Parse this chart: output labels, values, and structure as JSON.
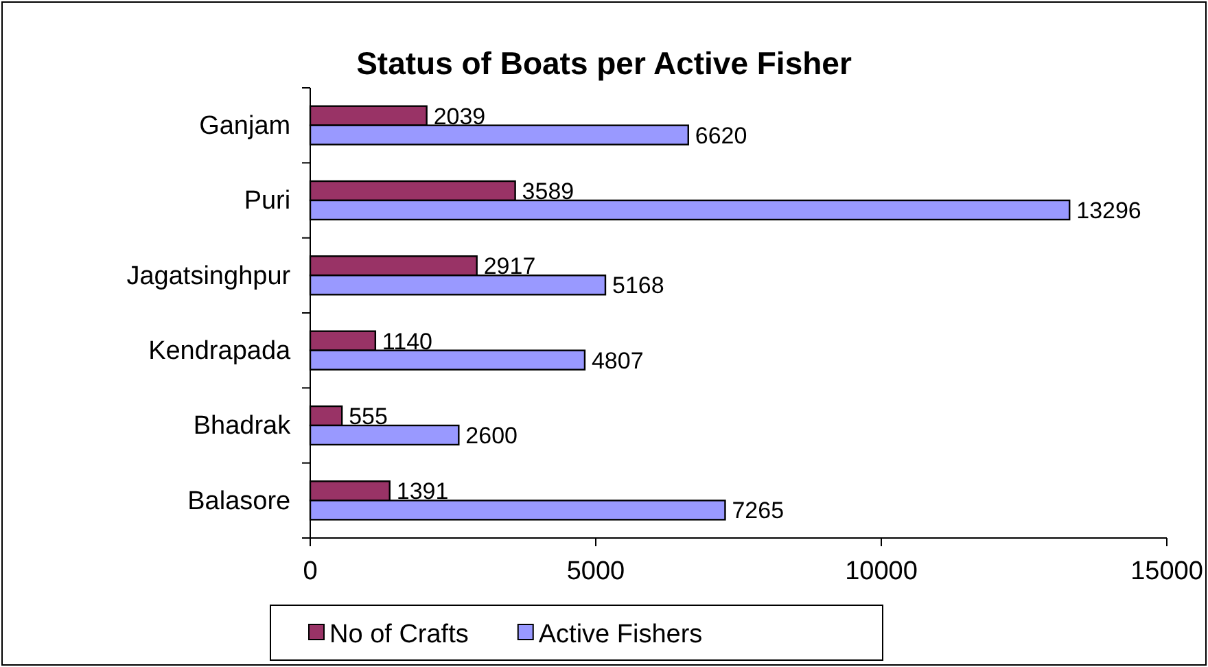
{
  "chart_data": {
    "type": "bar",
    "orientation": "horizontal",
    "title": "Status of Boats per Active Fisher",
    "categories": [
      "Ganjam",
      "Puri",
      "Jagatsinghpur",
      "Kendrapada",
      "Bhadrak",
      "Balasore"
    ],
    "series": [
      {
        "name": "No of Crafts",
        "color": "#993366",
        "values": [
          2039,
          3589,
          2917,
          1140,
          555,
          1391
        ]
      },
      {
        "name": "Active Fishers",
        "color": "#9999ff",
        "values": [
          6620,
          13296,
          5168,
          4807,
          2600,
          7265
        ]
      }
    ],
    "xlim": [
      0,
      15000
    ],
    "xticks": [
      0,
      5000,
      10000,
      15000
    ],
    "data_labels": true,
    "grid": false,
    "legend": "bottom"
  }
}
